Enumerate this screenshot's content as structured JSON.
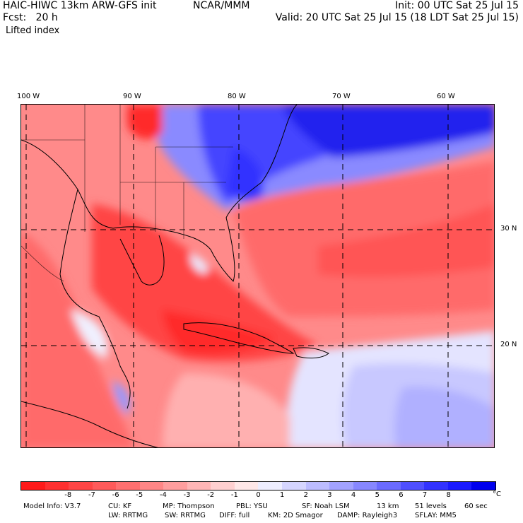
{
  "header": {
    "title": "HAIC-HIWC 13km ARW-GFS init",
    "source": "NCAR/MMM",
    "forecast": "Fcst:   20 h",
    "field": "Lifted index",
    "init": "Init: 00 UTC Sat 25 Jul 15",
    "valid": "Valid: 20 UTC Sat 25 Jul 15 (18 LDT Sat 25 Jul 15)"
  },
  "axes": {
    "longitude_labels": [
      "100 W",
      "90 W",
      "80 W",
      "70 W",
      "60 W"
    ],
    "latitude_labels": [
      "30 N",
      "20 N"
    ]
  },
  "colorbar": {
    "tick_labels": [
      "-8",
      "-7",
      "-6",
      "-5",
      "-4",
      "-3",
      "-2",
      "-1",
      "0",
      "1",
      "2",
      "3",
      "4",
      "5",
      "6",
      "7",
      "8"
    ],
    "unit": "°C",
    "colors": [
      "#ff1a1a",
      "#ff3030",
      "#ff4545",
      "#ff5a5a",
      "#ff7070",
      "#ff8686",
      "#ff9e9e",
      "#ffb6b6",
      "#ffd0d0",
      "#ffe8e8",
      "#eeeeff",
      "#d5d5ff",
      "#bcbcff",
      "#a2a2ff",
      "#8787ff",
      "#6b6bff",
      "#4f4fff",
      "#3232ff",
      "#1a1aff",
      "#0000ee"
    ]
  },
  "model_info": {
    "line1": [
      "Model Info: V3.7",
      "CU: KF",
      "MP: Thompson",
      "PBL: YSU",
      "SF: Noah LSM",
      "13 km",
      "51 levels",
      "60 sec"
    ],
    "line2": [
      "LW: RRTMG",
      "SW: RRTMG",
      "DIFF: full",
      "KM: 2D Smagor",
      "DAMP: Rayleigh3",
      "SFLAY: MM5"
    ]
  }
}
